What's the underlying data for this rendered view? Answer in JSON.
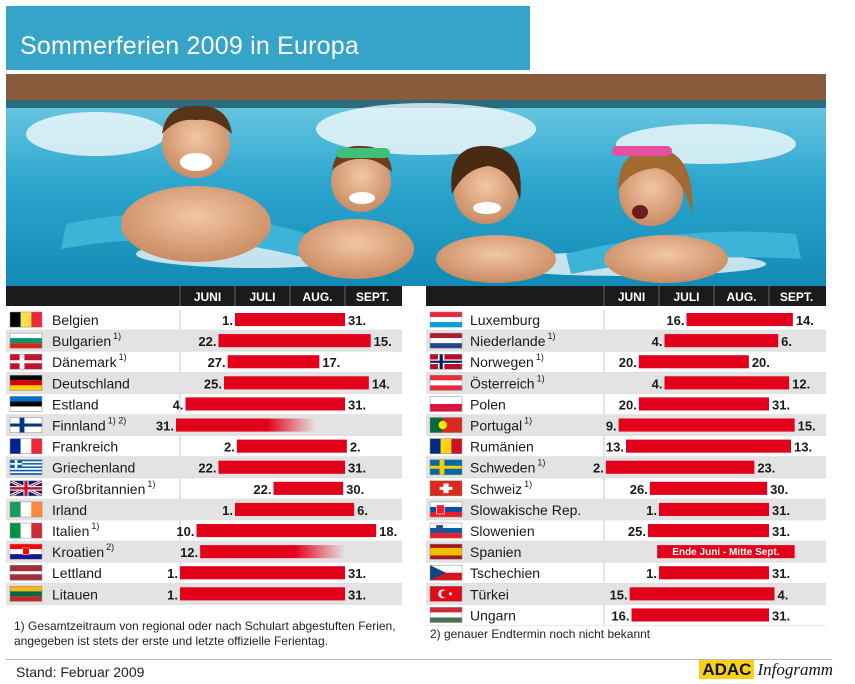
{
  "title": "Sommerferien 2009 in Europa",
  "photo_icon": "children-in-pool-photo",
  "colors": {
    "accent": "#35a4c8",
    "bar": "#e2001a",
    "header": "#1b1b1b",
    "stripe": "#e3e3e3"
  },
  "footnotes": {
    "note1": "1) Gesamtzeitraum von regional oder nach Schulart abgestuften Ferien, angegeben ist stets der erste und letzte offizielle Ferientag.",
    "note2": "2) genauer Endtermin noch nicht bekannt"
  },
  "stand": "Stand: Februar 2009",
  "brand": {
    "adac": "ADAC",
    "info": "Infogramm"
  },
  "chart_data": {
    "type": "bar",
    "subtype": "range-bar",
    "columns": [
      "JUNI",
      "JULI",
      "AUG.",
      "SEPT."
    ],
    "left": [
      {
        "country": "Belgien",
        "flag": "be",
        "sup": "",
        "start": 1,
        "end": 31,
        "start_label": "1.",
        "end_label": "31.",
        "from": [
          7,
          1
        ],
        "to": [
          8,
          31
        ]
      },
      {
        "country": "Bulgarien",
        "flag": "bg",
        "sup": "1)",
        "start": 22,
        "end": 15,
        "start_label": "22.",
        "end_label": "15.",
        "from": [
          6,
          22
        ],
        "to": [
          9,
          15
        ]
      },
      {
        "country": "Dänemark",
        "flag": "dk",
        "sup": "1)",
        "start": 27,
        "end": 17,
        "start_label": "27.",
        "end_label": "17.",
        "from": [
          6,
          27
        ],
        "to": [
          8,
          17
        ]
      },
      {
        "country": "Deutschland",
        "flag": "de",
        "sup": "",
        "start": 25,
        "end": 14,
        "start_label": "25.",
        "end_label": "14.",
        "from": [
          6,
          25
        ],
        "to": [
          9,
          14
        ]
      },
      {
        "country": "Estland",
        "flag": "ee",
        "sup": "",
        "start": 4,
        "end": 31,
        "start_label": "4.",
        "end_label": "31.",
        "from": [
          6,
          4
        ],
        "to": [
          8,
          31
        ]
      },
      {
        "country": "Finnland",
        "flag": "fi",
        "sup": "1) 2)",
        "start": 31,
        "end": null,
        "start_label": "31.",
        "end_label": "",
        "from": [
          5,
          31
        ],
        "to": [
          8,
          15
        ],
        "open": true
      },
      {
        "country": "Frankreich",
        "flag": "fr",
        "sup": "",
        "start": 2,
        "end": 2,
        "start_label": "2.",
        "end_label": "2.",
        "from": [
          7,
          2
        ],
        "to": [
          9,
          2
        ]
      },
      {
        "country": "Griechenland",
        "flag": "gr",
        "sup": "",
        "start": 22,
        "end": 31,
        "start_label": "22.",
        "end_label": "31.",
        "from": [
          6,
          22
        ],
        "to": [
          8,
          31
        ]
      },
      {
        "country": "Großbritannien",
        "flag": "gb",
        "sup": "1)",
        "start": 22,
        "end": 30,
        "start_label": "22.",
        "end_label": "30.",
        "from": [
          7,
          22
        ],
        "to": [
          8,
          30
        ]
      },
      {
        "country": "Irland",
        "flag": "ie",
        "sup": "",
        "start": 1,
        "end": 6,
        "start_label": "1.",
        "end_label": "6.",
        "from": [
          7,
          1
        ],
        "to": [
          9,
          6
        ]
      },
      {
        "country": "Italien",
        "flag": "it",
        "sup": "1)",
        "start": 10,
        "end": 18,
        "start_label": "10.",
        "end_label": "18.",
        "from": [
          6,
          10
        ],
        "to": [
          9,
          18
        ]
      },
      {
        "country": "Kroatien",
        "flag": "hr",
        "sup": "2)",
        "start": 12,
        "end": null,
        "start_label": "12.",
        "end_label": "",
        "from": [
          6,
          12
        ],
        "to": [
          8,
          31
        ],
        "open": true
      },
      {
        "country": "Lettland",
        "flag": "lv",
        "sup": "",
        "start": 1,
        "end": 31,
        "start_label": "1.",
        "end_label": "31.",
        "from": [
          6,
          1
        ],
        "to": [
          8,
          31
        ]
      },
      {
        "country": "Litauen",
        "flag": "lt",
        "sup": "",
        "start": 1,
        "end": 31,
        "start_label": "1.",
        "end_label": "31.",
        "from": [
          6,
          1
        ],
        "to": [
          8,
          31
        ]
      }
    ],
    "right": [
      {
        "country": "Luxemburg",
        "flag": "lu",
        "sup": "",
        "start": 16,
        "end": 14,
        "start_label": "16.",
        "end_label": "14.",
        "from": [
          7,
          16
        ],
        "to": [
          9,
          14
        ]
      },
      {
        "country": "Niederlande",
        "flag": "nl",
        "sup": "1)",
        "start": 4,
        "end": 6,
        "start_label": "4.",
        "end_label": "6.",
        "from": [
          7,
          4
        ],
        "to": [
          9,
          6
        ]
      },
      {
        "country": "Norwegen",
        "flag": "no",
        "sup": "1)",
        "start": 20,
        "end": 20,
        "start_label": "20.",
        "end_label": "20.",
        "from": [
          6,
          20
        ],
        "to": [
          8,
          20
        ]
      },
      {
        "country": "Österreich",
        "flag": "at",
        "sup": "1)",
        "start": 4,
        "end": 12,
        "start_label": "4.",
        "end_label": "12.",
        "from": [
          7,
          4
        ],
        "to": [
          9,
          12
        ]
      },
      {
        "country": "Polen",
        "flag": "pl",
        "sup": "",
        "start": 20,
        "end": 31,
        "start_label": "20.",
        "end_label": "31.",
        "from": [
          6,
          20
        ],
        "to": [
          8,
          31
        ]
      },
      {
        "country": "Portugal",
        "flag": "pt",
        "sup": "1)",
        "start": 9,
        "end": 15,
        "start_label": "9.",
        "end_label": "15.",
        "from": [
          6,
          9
        ],
        "to": [
          9,
          15
        ]
      },
      {
        "country": "Rumänien",
        "flag": "ro",
        "sup": "",
        "start": 13,
        "end": 13,
        "start_label": "13.",
        "end_label": "13.",
        "from": [
          6,
          13
        ],
        "to": [
          9,
          13
        ]
      },
      {
        "country": "Schweden",
        "flag": "se",
        "sup": "1)",
        "start": 2,
        "end": 23,
        "start_label": "2.",
        "end_label": "23.",
        "from": [
          6,
          2
        ],
        "to": [
          8,
          23
        ]
      },
      {
        "country": "Schweiz",
        "flag": "ch",
        "sup": "1)",
        "start": 26,
        "end": 30,
        "start_label": "26.",
        "end_label": "30.",
        "from": [
          6,
          26
        ],
        "to": [
          8,
          30
        ]
      },
      {
        "country": "Slowakische Rep.",
        "flag": "sk",
        "sup": "",
        "start": 1,
        "end": 31,
        "start_label": "1.",
        "end_label": "31.",
        "from": [
          7,
          1
        ],
        "to": [
          8,
          31
        ]
      },
      {
        "country": "Slowenien",
        "flag": "si",
        "sup": "",
        "start": 25,
        "end": 31,
        "start_label": "25.",
        "end_label": "31.",
        "from": [
          6,
          25
        ],
        "to": [
          8,
          31
        ]
      },
      {
        "country": "Spanien",
        "flag": "es",
        "sup": "",
        "start": null,
        "end": null,
        "start_label": "",
        "end_label": "",
        "from": [
          6,
          30
        ],
        "to": [
          9,
          15
        ],
        "bar_text": "Ende Juni - Mitte Sept."
      },
      {
        "country": "Tschechien",
        "flag": "cz",
        "sup": "",
        "start": 1,
        "end": 31,
        "start_label": "1.",
        "end_label": "31.",
        "from": [
          7,
          1
        ],
        "to": [
          8,
          31
        ]
      },
      {
        "country": "Türkei",
        "flag": "tr",
        "sup": "",
        "start": 15,
        "end": 4,
        "start_label": "15.",
        "end_label": "4.",
        "from": [
          6,
          15
        ],
        "to": [
          9,
          4
        ]
      },
      {
        "country": "Ungarn",
        "flag": "hu",
        "sup": "",
        "start": 16,
        "end": 31,
        "start_label": "16.",
        "end_label": "31.",
        "from": [
          6,
          16
        ],
        "to": [
          8,
          31
        ]
      }
    ]
  }
}
